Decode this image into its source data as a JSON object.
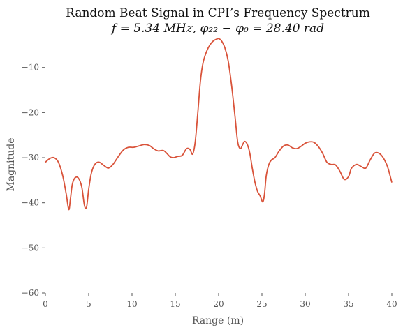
{
  "chart_data": {
    "type": "line",
    "title": "Random Beat Signal in CPI’s Frequency Spectrum",
    "subtitle": "f = 5.34 MHz, φ₂₂ − φ₀ = 28.40 rad",
    "xlabel": "Range (m)",
    "ylabel": "Magnitude",
    "xlim": [
      0,
      40
    ],
    "ylim": [
      -60,
      -2
    ],
    "xticks": [
      0,
      5,
      10,
      15,
      20,
      25,
      30,
      35,
      40
    ],
    "xtick_labels": [
      "0",
      "5",
      "10",
      "15",
      "20",
      "25",
      "30",
      "35",
      "40"
    ],
    "yticks": [
      -60,
      -50,
      -40,
      -30,
      -20,
      -10
    ],
    "ytick_labels": [
      "−60",
      "−50",
      "−40",
      "−30",
      "−20",
      "−10"
    ],
    "grid": false,
    "colors": {
      "line": "#d9533a",
      "text": "#555555",
      "title": "#111111"
    },
    "series": [
      {
        "x": [
          0,
          0.5,
          1.0,
          1.5,
          2.0,
          2.4,
          2.7,
          2.9,
          3.1,
          3.4,
          3.8,
          4.2,
          4.5,
          4.75,
          5.0,
          5.3,
          5.7,
          6.2,
          6.8,
          7.3,
          7.8,
          8.4,
          9.0,
          9.6,
          10.2,
          10.8,
          11.4,
          12.0,
          12.5,
          13.0,
          13.6,
          14.0,
          14.4,
          14.8,
          15.3,
          15.8,
          16.3,
          16.7,
          17.0,
          17.3,
          17.6,
          17.9,
          18.2,
          18.6,
          19.0,
          19.4,
          19.8,
          20.0,
          20.3,
          20.7,
          21.1,
          21.5,
          21.9,
          22.2,
          22.5,
          22.8,
          23.0,
          23.3,
          23.6,
          23.9,
          24.2,
          24.5,
          24.8,
          25.1,
          25.3,
          25.5,
          25.8,
          26.1,
          26.5,
          27.0,
          27.5,
          28.0,
          28.5,
          29.0,
          29.5,
          30.0,
          30.5,
          31.0,
          31.5,
          32.0,
          32.5,
          33.0,
          33.5,
          34.0,
          34.5,
          35.0,
          35.3,
          35.6,
          36.0,
          36.5,
          37.0,
          37.5,
          38.0,
          38.5,
          39.0,
          39.5,
          40.0
        ],
        "y": [
          -31.0,
          -30.2,
          -30.0,
          -31.0,
          -34.0,
          -38.0,
          -41.5,
          -39.0,
          -36.0,
          -34.5,
          -34.5,
          -36.5,
          -40.5,
          -41.0,
          -37.0,
          -33.5,
          -31.5,
          -31.0,
          -31.8,
          -32.3,
          -31.5,
          -29.8,
          -28.3,
          -27.7,
          -27.7,
          -27.4,
          -27.1,
          -27.3,
          -28.0,
          -28.5,
          -28.4,
          -29.0,
          -29.8,
          -30.0,
          -29.7,
          -29.5,
          -28.0,
          -28.2,
          -29.2,
          -26.5,
          -20.0,
          -13.0,
          -9.0,
          -6.5,
          -5.0,
          -4.1,
          -3.7,
          -3.6,
          -4.0,
          -5.5,
          -8.5,
          -14.0,
          -21.0,
          -26.5,
          -28.0,
          -27.0,
          -26.4,
          -27.0,
          -29.0,
          -32.5,
          -35.5,
          -37.5,
          -38.5,
          -39.8,
          -38.0,
          -34.0,
          -31.5,
          -30.5,
          -30.0,
          -28.5,
          -27.4,
          -27.2,
          -27.8,
          -28.0,
          -27.5,
          -26.8,
          -26.5,
          -26.6,
          -27.5,
          -29.0,
          -31.0,
          -31.5,
          -31.6,
          -33.0,
          -34.8,
          -34.2,
          -32.5,
          -31.8,
          -31.5,
          -32.0,
          -32.3,
          -30.5,
          -29.0,
          -29.0,
          -30.0,
          -32.0,
          -35.5
        ]
      }
    ]
  }
}
